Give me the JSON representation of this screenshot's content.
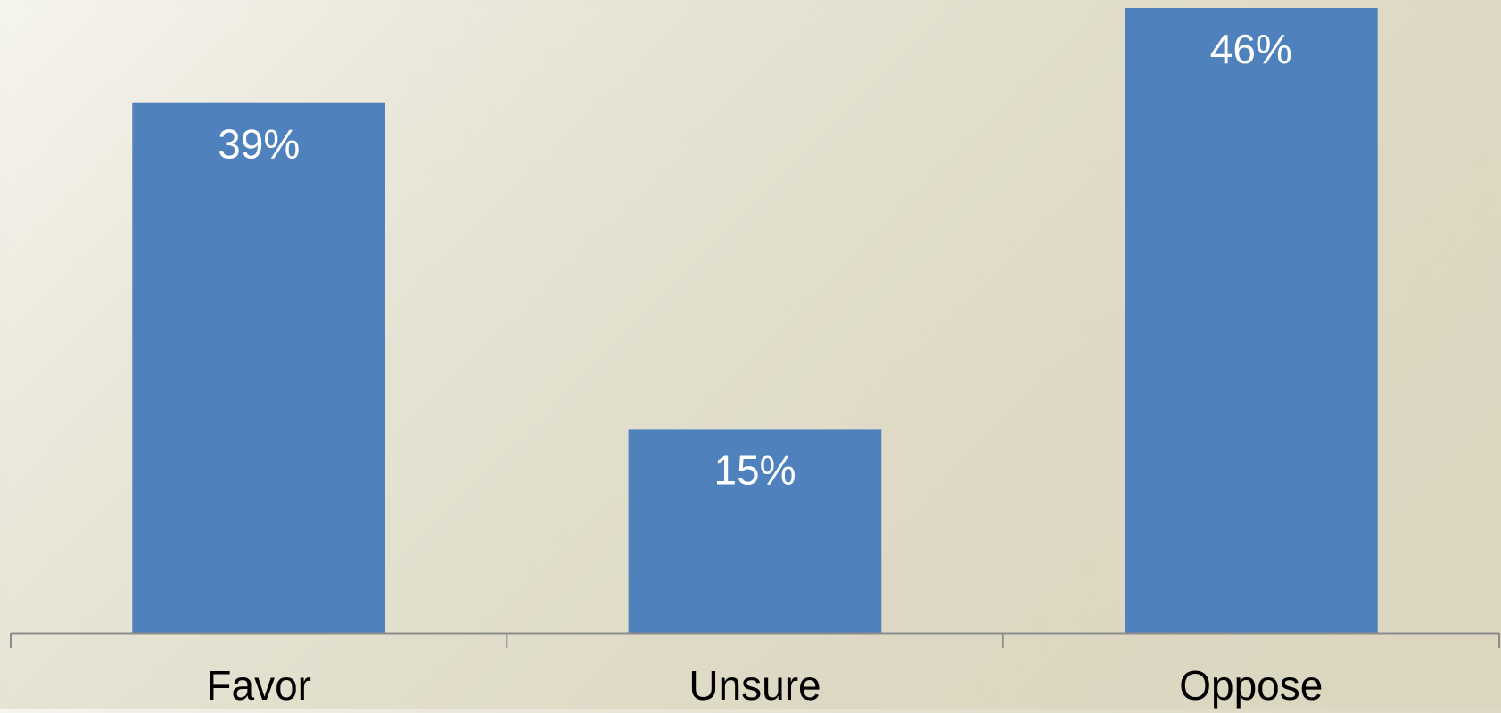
{
  "chart_data": {
    "type": "bar",
    "categories": [
      "Favor",
      "Unsure",
      "Oppose"
    ],
    "values": [
      39,
      15,
      46
    ],
    "value_labels": [
      "39%",
      "15%",
      "46%"
    ],
    "ylim": [
      0,
      46
    ],
    "grid": false,
    "legend": "none",
    "colors": {
      "bar": "#4f81bd",
      "axis": "#8c8c8c",
      "data_label": "#ffffff",
      "category_label": "#000000"
    }
  }
}
